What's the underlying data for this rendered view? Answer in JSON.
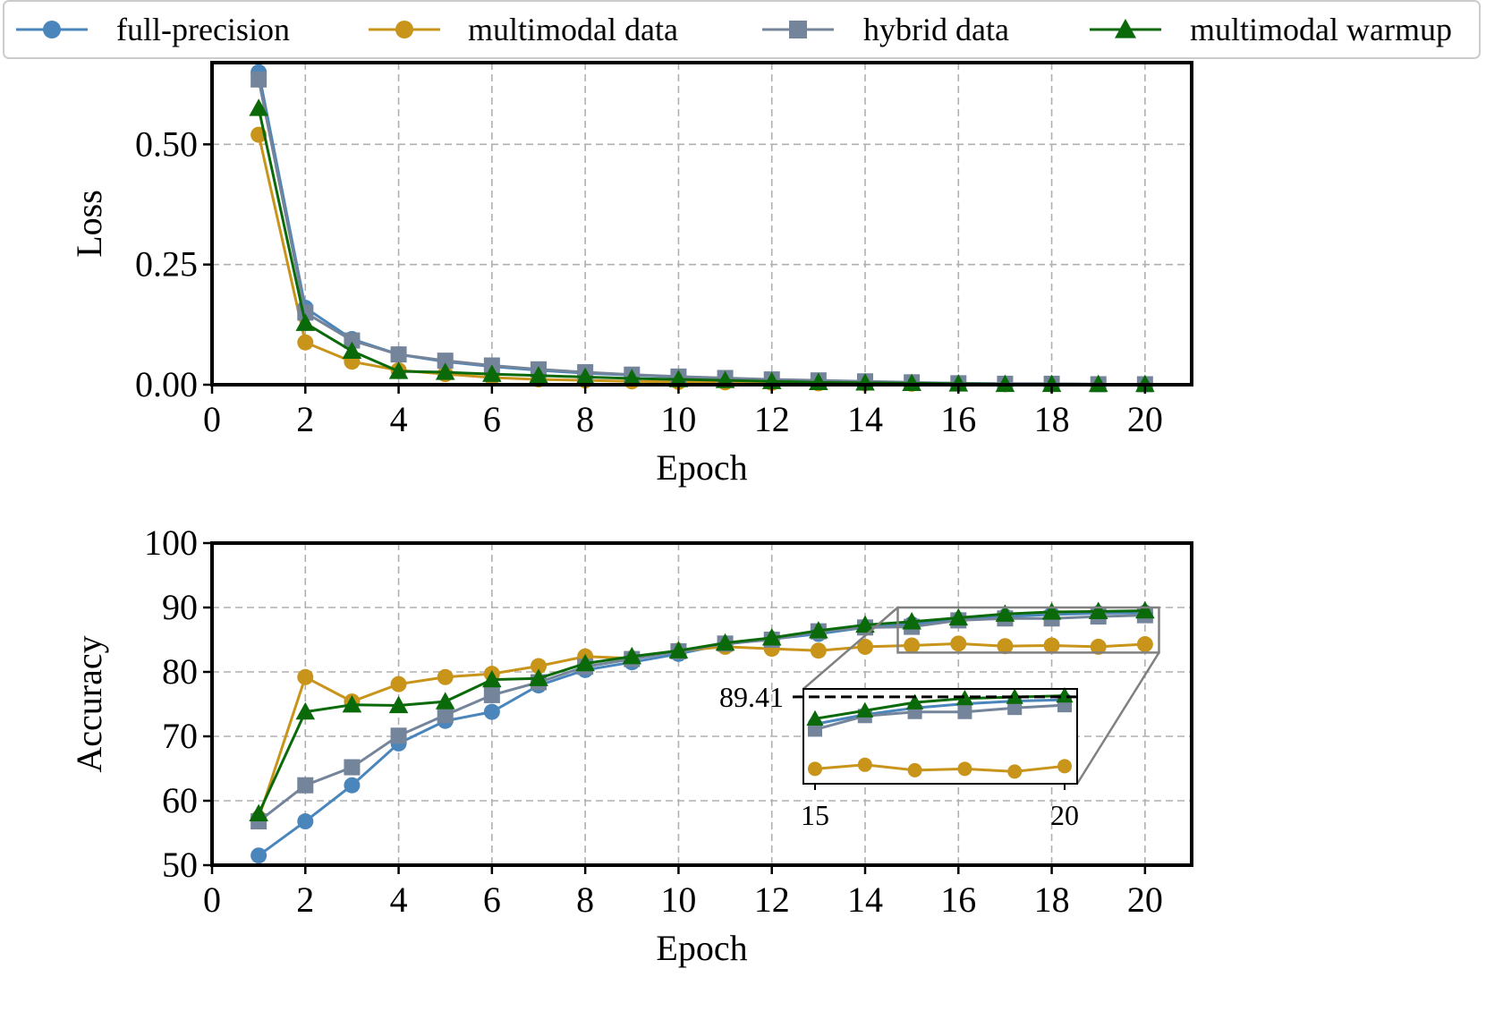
{
  "legend": {
    "placement": "top",
    "entries": [
      {
        "name": "full-precision",
        "color": "#4a86bb",
        "marker": "circle"
      },
      {
        "name": "multimodal data",
        "color": "#c8941a",
        "marker": "circle"
      },
      {
        "name": "hybrid data",
        "color": "#74849a",
        "marker": "square"
      },
      {
        "name": "multimodal warmup",
        "color": "#0a6a0a",
        "marker": "triangle"
      }
    ]
  },
  "chart_data": [
    {
      "type": "line",
      "xlabel": "Epoch",
      "ylabel": "Loss",
      "xlim": [
        0,
        21
      ],
      "ylim": [
        0,
        0.67
      ],
      "xticks": [
        0,
        2,
        4,
        6,
        8,
        10,
        12,
        14,
        16,
        18,
        20
      ],
      "xtick_labels": [
        "0",
        "2",
        "4",
        "6",
        "8",
        "10",
        "12",
        "14",
        "16",
        "18",
        "20"
      ],
      "yticks": [
        0,
        0.25,
        0.5
      ],
      "ytick_labels": [
        "0.00",
        "0.25",
        "0.50"
      ],
      "grid": true,
      "x": [
        1,
        2,
        3,
        4,
        5,
        6,
        7,
        8,
        9,
        10,
        11,
        12,
        13,
        14,
        15,
        16,
        17,
        18,
        19,
        20
      ],
      "series": [
        {
          "name": "full-precision",
          "values": [
            0.65,
            0.16,
            0.095,
            0.063,
            0.048,
            0.038,
            0.03,
            0.024,
            0.02,
            0.016,
            0.013,
            0.01,
            0.008,
            0.006,
            0.004,
            0.003,
            0.002,
            0.002,
            0.001,
            0.001
          ]
        },
        {
          "name": "multimodal data",
          "values": [
            0.52,
            0.088,
            0.048,
            0.03,
            0.022,
            0.015,
            0.011,
            0.009,
            0.007,
            0.006,
            0.005,
            0.004,
            0.003,
            0.003,
            0.002,
            0.002,
            0.001,
            0.001,
            0.001,
            0.001
          ]
        },
        {
          "name": "hybrid data",
          "values": [
            0.635,
            0.15,
            0.092,
            0.063,
            0.05,
            0.04,
            0.032,
            0.026,
            0.021,
            0.017,
            0.014,
            0.011,
            0.009,
            0.007,
            0.005,
            0.003,
            0.002,
            0.002,
            0.001,
            0.001
          ]
        },
        {
          "name": "multimodal warmup",
          "values": [
            0.575,
            0.128,
            0.07,
            0.028,
            0.026,
            0.022,
            0.019,
            0.016,
            0.013,
            0.011,
            0.009,
            0.007,
            0.005,
            0.004,
            0.003,
            0.002,
            0.001,
            0.001,
            0.001,
            0.001
          ]
        }
      ]
    },
    {
      "type": "line",
      "xlabel": "Epoch",
      "ylabel": "Accuracy",
      "xlim": [
        0,
        21
      ],
      "ylim": [
        50,
        100
      ],
      "xticks": [
        0,
        2,
        4,
        6,
        8,
        10,
        12,
        14,
        16,
        18,
        20
      ],
      "xtick_labels": [
        "0",
        "2",
        "4",
        "6",
        "8",
        "10",
        "12",
        "14",
        "16",
        "18",
        "20"
      ],
      "yticks": [
        50,
        60,
        70,
        80,
        90,
        100
      ],
      "ytick_labels": [
        "50",
        "60",
        "70",
        "80",
        "90",
        "100"
      ],
      "grid": true,
      "x": [
        1,
        2,
        3,
        4,
        5,
        6,
        7,
        8,
        9,
        10,
        11,
        12,
        13,
        14,
        15,
        16,
        17,
        18,
        19,
        20
      ],
      "series": [
        {
          "name": "full-precision",
          "values": [
            51.5,
            56.8,
            62.4,
            68.9,
            72.4,
            73.8,
            77.9,
            80.3,
            81.5,
            82.8,
            84.3,
            85.1,
            85.9,
            86.9,
            87.4,
            88.1,
            88.6,
            88.9,
            89.1,
            89.2
          ]
        },
        {
          "name": "multimodal data",
          "values": [
            57.3,
            79.2,
            75.4,
            78.1,
            79.2,
            79.7,
            80.9,
            82.4,
            82.1,
            83.3,
            83.9,
            83.6,
            83.3,
            83.9,
            84.1,
            84.4,
            84.0,
            84.1,
            83.9,
            84.3
          ]
        },
        {
          "name": "hybrid data",
          "values": [
            56.8,
            62.4,
            65.2,
            70.1,
            73.3,
            76.4,
            78.4,
            80.8,
            82.0,
            83.2,
            84.4,
            85.0,
            86.3,
            86.9,
            87.0,
            88.0,
            88.3,
            88.3,
            88.6,
            88.8
          ]
        },
        {
          "name": "multimodal warmup",
          "values": [
            58.0,
            73.8,
            74.9,
            74.8,
            75.4,
            78.8,
            79.0,
            81.3,
            82.4,
            83.3,
            84.5,
            85.3,
            86.4,
            87.3,
            87.8,
            88.4,
            89.0,
            89.3,
            89.4,
            89.5
          ]
        }
      ],
      "inset": {
        "xlim": [
          15,
          20
        ],
        "ylim": [
          83,
          90
        ],
        "xtick_labels": [
          "15",
          "20"
        ],
        "reference_value": 89.41,
        "reference_label": "89.41"
      }
    }
  ]
}
